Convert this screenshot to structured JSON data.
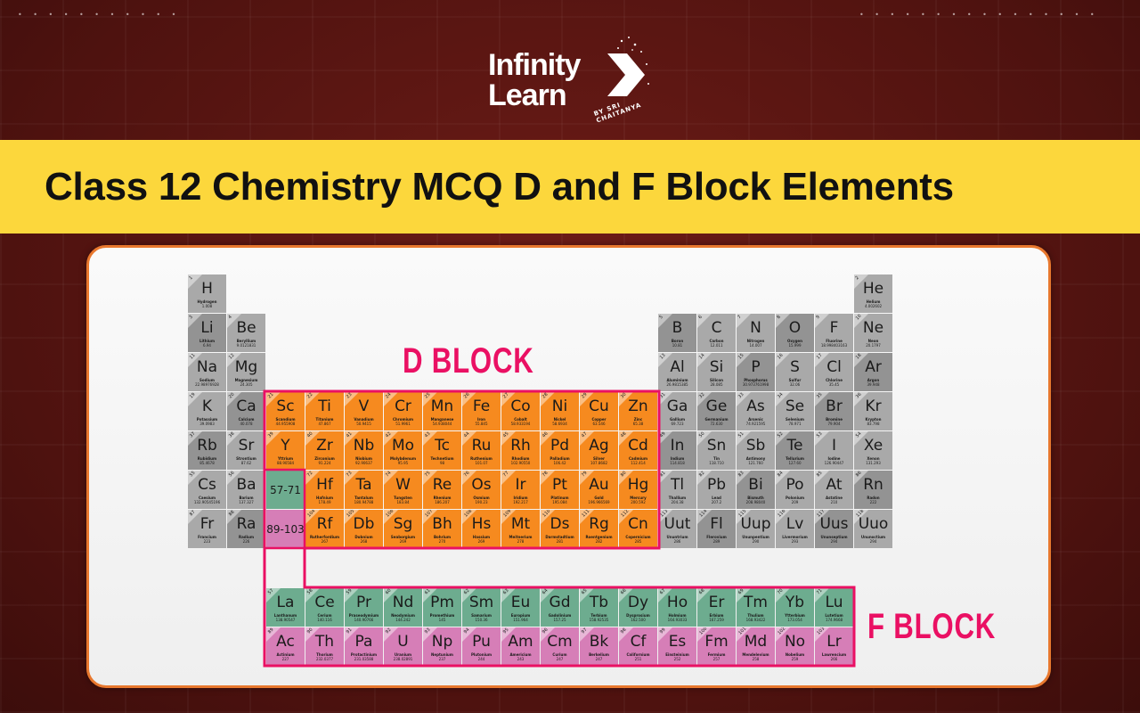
{
  "logo": {
    "line1": "Infinity",
    "line2": "Learn",
    "tagline": "BY SRI CHAITANYA"
  },
  "banner": {
    "title": "Class 12 Chemistry MCQ D and F Block Elements"
  },
  "labels": {
    "d_block": "D BLOCK",
    "f_block": "F BLOCK"
  },
  "placeholders": {
    "lanthanides": "57-71",
    "actinides": "89-103"
  },
  "colors": {
    "background": "#4e120f",
    "banner": "#fcd73c",
    "d_block": "#f68a1f",
    "lanthanides": "#6dac8f",
    "actinides": "#d67eb7",
    "other": "#a9a9a9",
    "highlight": "#ea1063"
  },
  "elements": [
    [
      1,
      "H",
      "Hydrogen",
      "1.008"
    ],
    [
      2,
      "He",
      "Helium",
      "4.002602"
    ],
    [
      3,
      "Li",
      "Lithium",
      "6.94"
    ],
    [
      4,
      "Be",
      "Beryllium",
      "9.0121831"
    ],
    [
      5,
      "B",
      "Boron",
      "10.81"
    ],
    [
      6,
      "C",
      "Carbon",
      "12.011"
    ],
    [
      7,
      "N",
      "Nitrogen",
      "14.007"
    ],
    [
      8,
      "O",
      "Oxygen",
      "15.999"
    ],
    [
      9,
      "F",
      "Fluorine",
      "18.998403163"
    ],
    [
      10,
      "Ne",
      "Neon",
      "20.1797"
    ],
    [
      11,
      "Na",
      "Sodium",
      "22.98976928"
    ],
    [
      12,
      "Mg",
      "Magnesium",
      "24.305"
    ],
    [
      13,
      "Al",
      "Aluminium",
      "26.9815385"
    ],
    [
      14,
      "Si",
      "Silicon",
      "28.085"
    ],
    [
      15,
      "P",
      "Phosphorus",
      "30.973761998"
    ],
    [
      16,
      "S",
      "Sulfur",
      "32.06"
    ],
    [
      17,
      "Cl",
      "Chlorine",
      "35.45"
    ],
    [
      18,
      "Ar",
      "Argon",
      "39.948"
    ],
    [
      19,
      "K",
      "Potassium",
      "39.0983"
    ],
    [
      20,
      "Ca",
      "Calcium",
      "40.078"
    ],
    [
      21,
      "Sc",
      "Scandium",
      "44.955908"
    ],
    [
      22,
      "Ti",
      "Titanium",
      "47.867"
    ],
    [
      23,
      "V",
      "Vanadium",
      "50.9415"
    ],
    [
      24,
      "Cr",
      "Chromium",
      "51.9961"
    ],
    [
      25,
      "Mn",
      "Manganese",
      "54.938044"
    ],
    [
      26,
      "Fe",
      "Iron",
      "55.845"
    ],
    [
      27,
      "Co",
      "Cobalt",
      "58.933194"
    ],
    [
      28,
      "Ni",
      "Nickel",
      "58.6934"
    ],
    [
      29,
      "Cu",
      "Copper",
      "63.546"
    ],
    [
      30,
      "Zn",
      "Zinc",
      "65.38"
    ],
    [
      31,
      "Ga",
      "Gallium",
      "69.723"
    ],
    [
      32,
      "Ge",
      "Germanium",
      "72.630"
    ],
    [
      33,
      "As",
      "Arsenic",
      "74.921595"
    ],
    [
      34,
      "Se",
      "Selenium",
      "78.971"
    ],
    [
      35,
      "Br",
      "Bromine",
      "79.904"
    ],
    [
      36,
      "Kr",
      "Krypton",
      "83.798"
    ],
    [
      37,
      "Rb",
      "Rubidium",
      "85.4678"
    ],
    [
      38,
      "Sr",
      "Strontium",
      "87.62"
    ],
    [
      39,
      "Y",
      "Yttrium",
      "88.90584"
    ],
    [
      40,
      "Zr",
      "Zirconium",
      "91.224"
    ],
    [
      41,
      "Nb",
      "Niobium",
      "92.90637"
    ],
    [
      42,
      "Mo",
      "Molybdenum",
      "95.95"
    ],
    [
      43,
      "Tc",
      "Technetium",
      "98"
    ],
    [
      44,
      "Ru",
      "Ruthenium",
      "101.07"
    ],
    [
      45,
      "Rh",
      "Rhodium",
      "102.90550"
    ],
    [
      46,
      "Pd",
      "Palladium",
      "106.42"
    ],
    [
      47,
      "Ag",
      "Silver",
      "107.8682"
    ],
    [
      48,
      "Cd",
      "Cadmium",
      "112.414"
    ],
    [
      49,
      "In",
      "Indium",
      "114.818"
    ],
    [
      50,
      "Sn",
      "Tin",
      "118.710"
    ],
    [
      51,
      "Sb",
      "Antimony",
      "121.760"
    ],
    [
      52,
      "Te",
      "Tellurium",
      "127.60"
    ],
    [
      53,
      "I",
      "Iodine",
      "126.90447"
    ],
    [
      54,
      "Xe",
      "Xenon",
      "131.293"
    ],
    [
      55,
      "Cs",
      "Caesium",
      "132.90545196"
    ],
    [
      56,
      "Ba",
      "Barium",
      "137.327"
    ],
    [
      57,
      "La",
      "Lanthanum",
      "138.90547"
    ],
    [
      58,
      "Ce",
      "Cerium",
      "140.116"
    ],
    [
      59,
      "Pr",
      "Praseodymium",
      "140.90766"
    ],
    [
      60,
      "Nd",
      "Neodymium",
      "144.242"
    ],
    [
      61,
      "Pm",
      "Promethium",
      "145"
    ],
    [
      62,
      "Sm",
      "Samarium",
      "150.36"
    ],
    [
      63,
      "Eu",
      "Europium",
      "151.964"
    ],
    [
      64,
      "Gd",
      "Gadolinium",
      "157.25"
    ],
    [
      65,
      "Tb",
      "Terbium",
      "158.92535"
    ],
    [
      66,
      "Dy",
      "Dysprosium",
      "162.500"
    ],
    [
      67,
      "Ho",
      "Holmium",
      "164.93033"
    ],
    [
      68,
      "Er",
      "Erbium",
      "167.259"
    ],
    [
      69,
      "Tm",
      "Thulium",
      "168.93422"
    ],
    [
      70,
      "Yb",
      "Ytterbium",
      "173.054"
    ],
    [
      71,
      "Lu",
      "Lutetium",
      "174.9668"
    ],
    [
      72,
      "Hf",
      "Hafnium",
      "178.49"
    ],
    [
      73,
      "Ta",
      "Tantalum",
      "180.94788"
    ],
    [
      74,
      "W",
      "Tungsten",
      "183.84"
    ],
    [
      75,
      "Re",
      "Rhenium",
      "186.207"
    ],
    [
      76,
      "Os",
      "Osmium",
      "190.23"
    ],
    [
      77,
      "Ir",
      "Iridium",
      "192.217"
    ],
    [
      78,
      "Pt",
      "Platinum",
      "195.084"
    ],
    [
      79,
      "Au",
      "Gold",
      "196.966569"
    ],
    [
      80,
      "Hg",
      "Mercury",
      "200.592"
    ],
    [
      81,
      "Tl",
      "Thallium",
      "204.38"
    ],
    [
      82,
      "Pb",
      "Lead",
      "207.2"
    ],
    [
      83,
      "Bi",
      "Bismuth",
      "208.98040"
    ],
    [
      84,
      "Po",
      "Polonium",
      "209"
    ],
    [
      85,
      "At",
      "Astatine",
      "210"
    ],
    [
      86,
      "Rn",
      "Radon",
      "222"
    ],
    [
      87,
      "Fr",
      "Francium",
      "223"
    ],
    [
      88,
      "Ra",
      "Radium",
      "226"
    ],
    [
      89,
      "Ac",
      "Actinium",
      "227"
    ],
    [
      90,
      "Th",
      "Thorium",
      "232.0377"
    ],
    [
      91,
      "Pa",
      "Protactinium",
      "231.03588"
    ],
    [
      92,
      "U",
      "Uranium",
      "238.02891"
    ],
    [
      93,
      "Np",
      "Neptunium",
      "237"
    ],
    [
      94,
      "Pu",
      "Plutonium",
      "244"
    ],
    [
      95,
      "Am",
      "Americium",
      "243"
    ],
    [
      96,
      "Cm",
      "Curium",
      "247"
    ],
    [
      97,
      "Bk",
      "Berkelium",
      "247"
    ],
    [
      98,
      "Cf",
      "Californium",
      "251"
    ],
    [
      99,
      "Es",
      "Einsteinium",
      "252"
    ],
    [
      100,
      "Fm",
      "Fermium",
      "257"
    ],
    [
      101,
      "Md",
      "Mendelevium",
      "258"
    ],
    [
      102,
      "No",
      "Nobelium",
      "259"
    ],
    [
      103,
      "Lr",
      "Lawrencium",
      "266"
    ],
    [
      104,
      "Rf",
      "Rutherfordium",
      "267"
    ],
    [
      105,
      "Db",
      "Dubnium",
      "268"
    ],
    [
      106,
      "Sg",
      "Seaborgium",
      "269"
    ],
    [
      107,
      "Bh",
      "Bohrium",
      "270"
    ],
    [
      108,
      "Hs",
      "Hassium",
      "269"
    ],
    [
      109,
      "Mt",
      "Meitnerium",
      "278"
    ],
    [
      110,
      "Ds",
      "Darmstadtium",
      "281"
    ],
    [
      111,
      "Rg",
      "Roentgenium",
      "282"
    ],
    [
      112,
      "Cn",
      "Copernicium",
      "285"
    ],
    [
      113,
      "Uut",
      "Ununtrium",
      "286"
    ],
    [
      114,
      "Fl",
      "Flerovium",
      "289"
    ],
    [
      115,
      "Uup",
      "Ununpentium",
      "290"
    ],
    [
      116,
      "Lv",
      "Livermorium",
      "293"
    ],
    [
      117,
      "Uus",
      "Ununseptium",
      "294"
    ],
    [
      118,
      "Uuo",
      "Ununoctium",
      "294"
    ]
  ]
}
